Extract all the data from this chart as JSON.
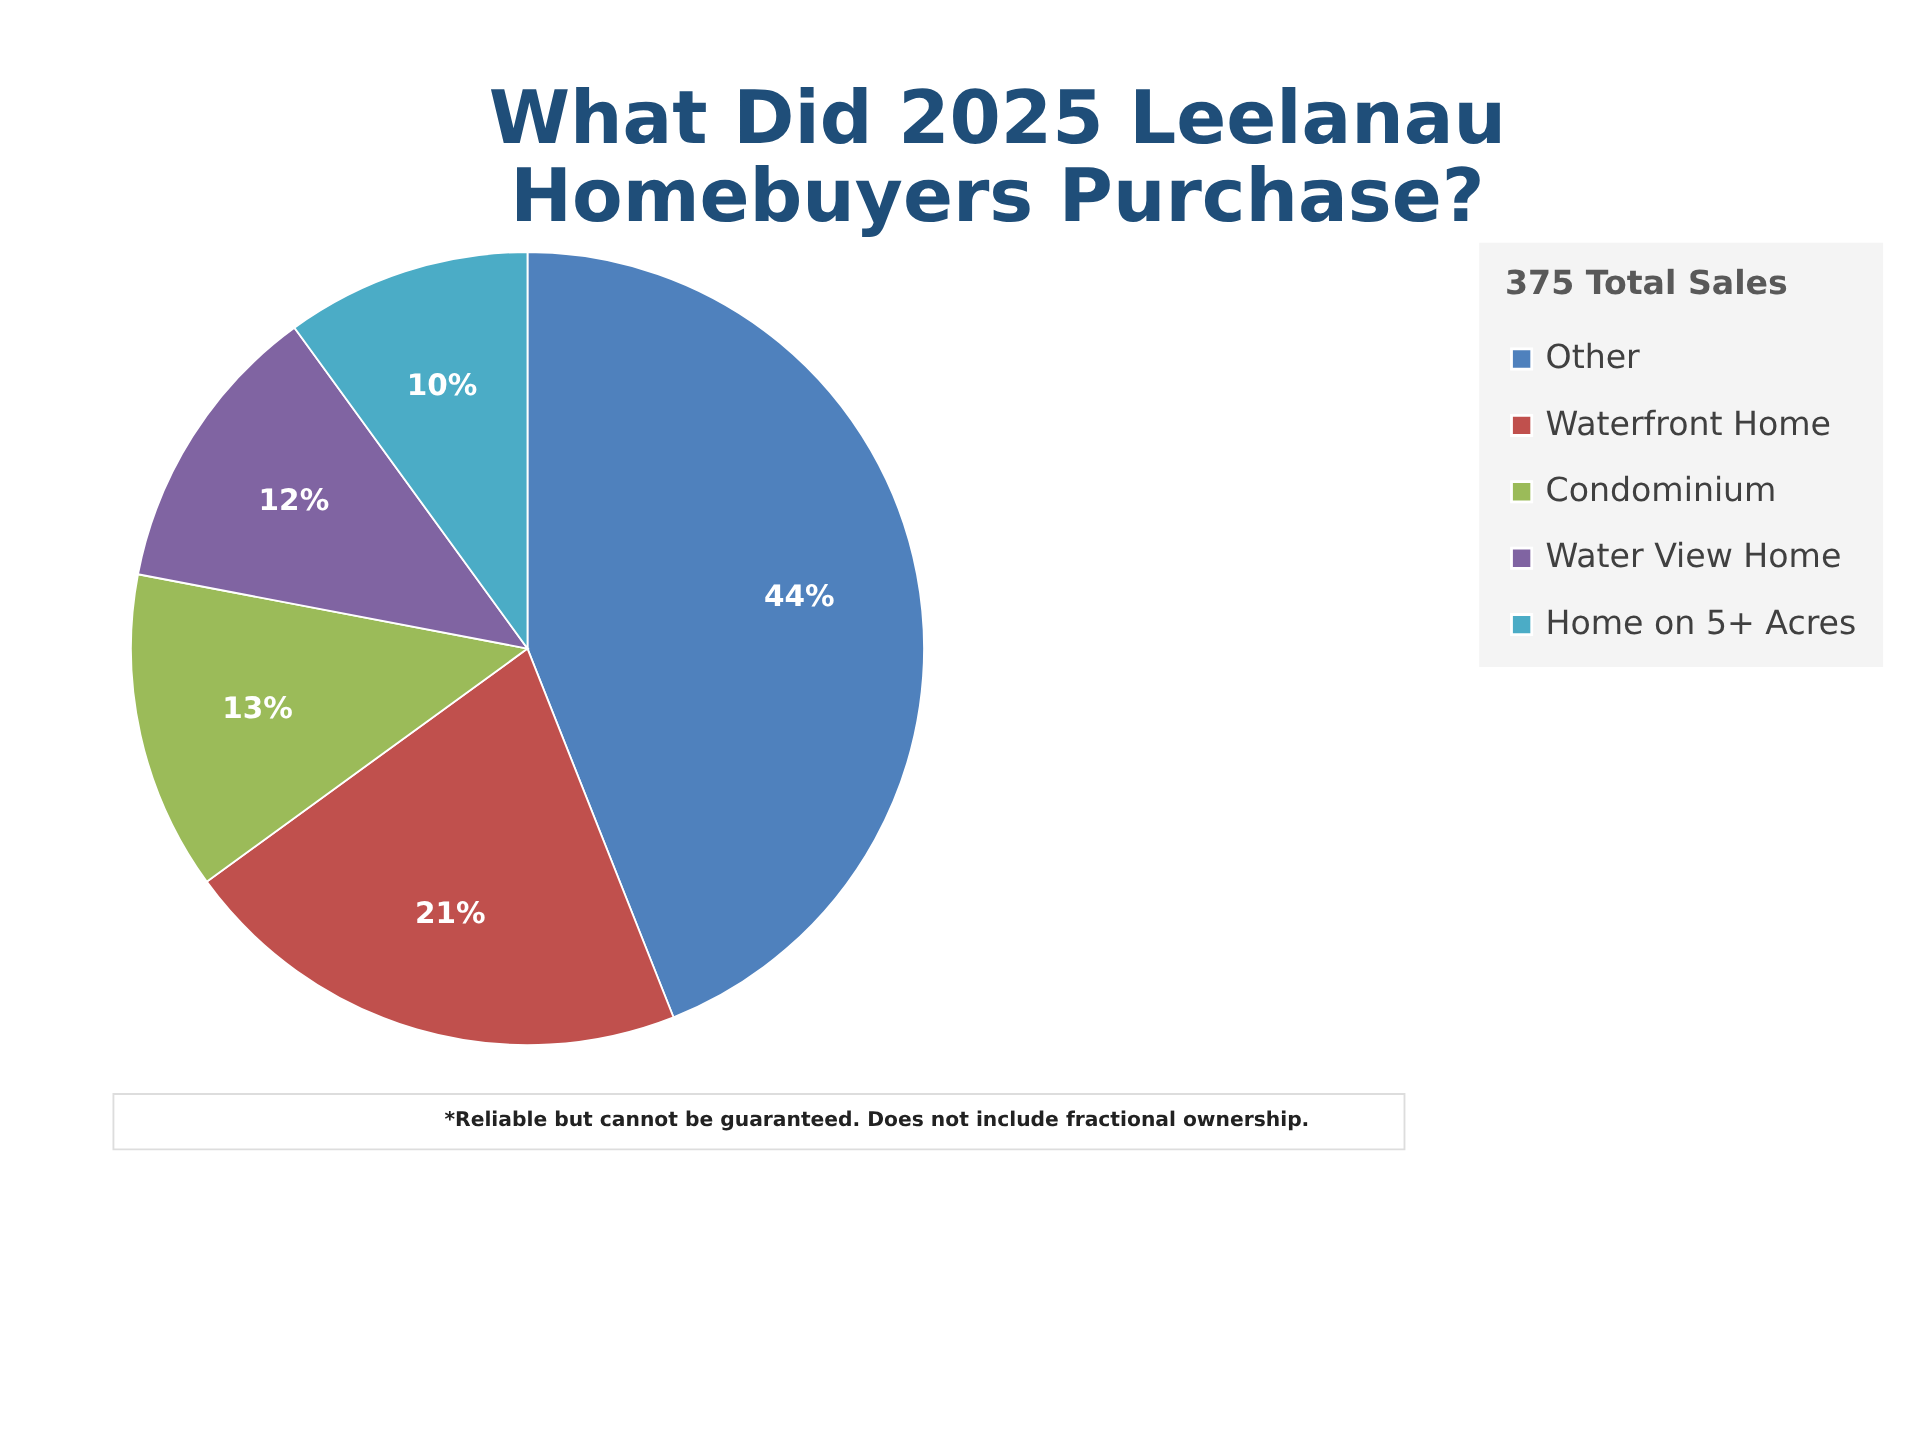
{
  "chart_data": {
    "type": "pie",
    "title": [
      "What Did 2025 Leelanau",
      "Homebuyers Purchase?"
    ],
    "legend_title": "375 Total Sales",
    "legend": "right",
    "categories": [
      "Other",
      "Waterfront Home",
      "Condominium",
      "Water View Home",
      "Home on 5+ Acres"
    ],
    "values": [
      44,
      21,
      13,
      12,
      10
    ],
    "colors": [
      "#4f81bd",
      "#c0504d",
      "#9bbb59",
      "#8064a2",
      "#4bacc6"
    ],
    "value_labels": [
      "44%",
      "21%",
      "13%",
      "12%",
      "10%"
    ],
    "annotations": [
      "*Reliable but cannot be guaranteed. Does not include fractional ownership."
    ]
  }
}
